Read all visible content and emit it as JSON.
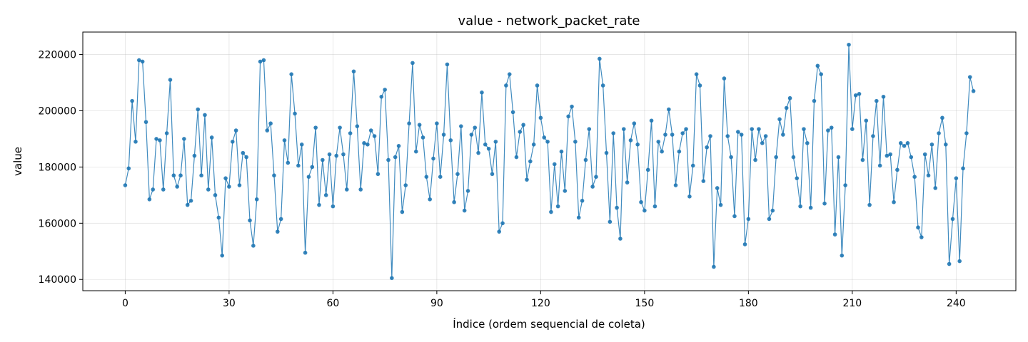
{
  "chart_data": {
    "type": "line",
    "title": "value - network_packet_rate",
    "xlabel": "Índice (ordem sequencial de coleta)",
    "ylabel": "value",
    "xlim": [
      -12.25,
      257.25
    ],
    "ylim": [
      136000,
      228000
    ],
    "xticks": [
      0,
      30,
      60,
      90,
      120,
      150,
      180,
      210,
      240
    ],
    "yticks": [
      140000,
      160000,
      180000,
      200000,
      220000
    ],
    "ytick_labels": [
      "140000",
      "160000",
      "180000",
      "200000",
      "220000"
    ],
    "grid": true,
    "legend": "none",
    "colors": {
      "series": "#1f77b4"
    },
    "series": [
      {
        "values": [
          173500,
          179500,
          203500,
          189000,
          218000,
          217500,
          196000,
          168500,
          172000,
          190000,
          189500,
          172000,
          192000,
          211000,
          177000,
          173000,
          177000,
          190000,
          166500,
          168000,
          184000,
          200500,
          177000,
          198500,
          172000,
          190500,
          170000,
          162000,
          148500,
          176000,
          173000,
          189000,
          193000,
          173500,
          185000,
          183500,
          161000,
          152000,
          168500,
          217500,
          218000,
          193000,
          195500,
          177000,
          157000,
          161500,
          189500,
          181500,
          213000,
          199000,
          180500,
          188000,
          149500,
          176500,
          180000,
          194000,
          166500,
          182500,
          170000,
          184500,
          166000,
          184000,
          194000,
          184500,
          172000,
          192000,
          214000,
          194500,
          172000,
          188500,
          188000,
          193000,
          191000,
          177500,
          205000,
          207500,
          182500,
          140500,
          183500,
          187500,
          164000,
          173500,
          195500,
          217000,
          185500,
          195000,
          190500,
          176500,
          168500,
          183000,
          195500,
          176500,
          191500,
          216500,
          189500,
          167500,
          177500,
          194500,
          164500,
          171500,
          191500,
          194000,
          185000,
          206500,
          188000,
          186500,
          177500,
          189000,
          157000,
          160000,
          209000,
          213000,
          199500,
          183500,
          192500,
          195000,
          175500,
          182000,
          188000,
          209000,
          197500,
          190500,
          189000,
          164000,
          181000,
          166000,
          185500,
          171500,
          198000,
          201500,
          189000,
          162000,
          168000,
          182500,
          193500,
          173000,
          176500,
          218500,
          209000,
          185000,
          160500,
          192000,
          165500,
          154500,
          193500,
          174500,
          189500,
          195500,
          188000,
          167500,
          164500,
          179000,
          196500,
          166000,
          189000,
          185500,
          191500,
          200500,
          191500,
          173500,
          185500,
          192000,
          193500,
          169500,
          180500,
          213000,
          209000,
          175000,
          187000,
          191000,
          144500,
          172500,
          166500,
          211500,
          191000,
          183500,
          162500,
          192500,
          191500,
          152500,
          161500,
          193500,
          182500,
          193500,
          188500,
          191000,
          161500,
          164500,
          183500,
          197000,
          191500,
          201000,
          204500,
          183500,
          176000,
          166000,
          193500,
          188500,
          165500,
          203500,
          216000,
          213000,
          167000,
          193000,
          194000,
          156000,
          183500,
          148500,
          173500,
          223500,
          193500,
          205500,
          206000,
          182500,
          196500,
          166500,
          191000,
          203500,
          180500,
          205000,
          184000,
          184500,
          167500,
          179000,
          188500,
          187500,
          188500,
          183500,
          176500,
          158500,
          155000,
          184500,
          177000,
          188000,
          172500,
          192000,
          197500,
          188000,
          145500,
          161500,
          176000,
          146500,
          179500,
          192000,
          212000,
          207000
        ]
      }
    ]
  }
}
